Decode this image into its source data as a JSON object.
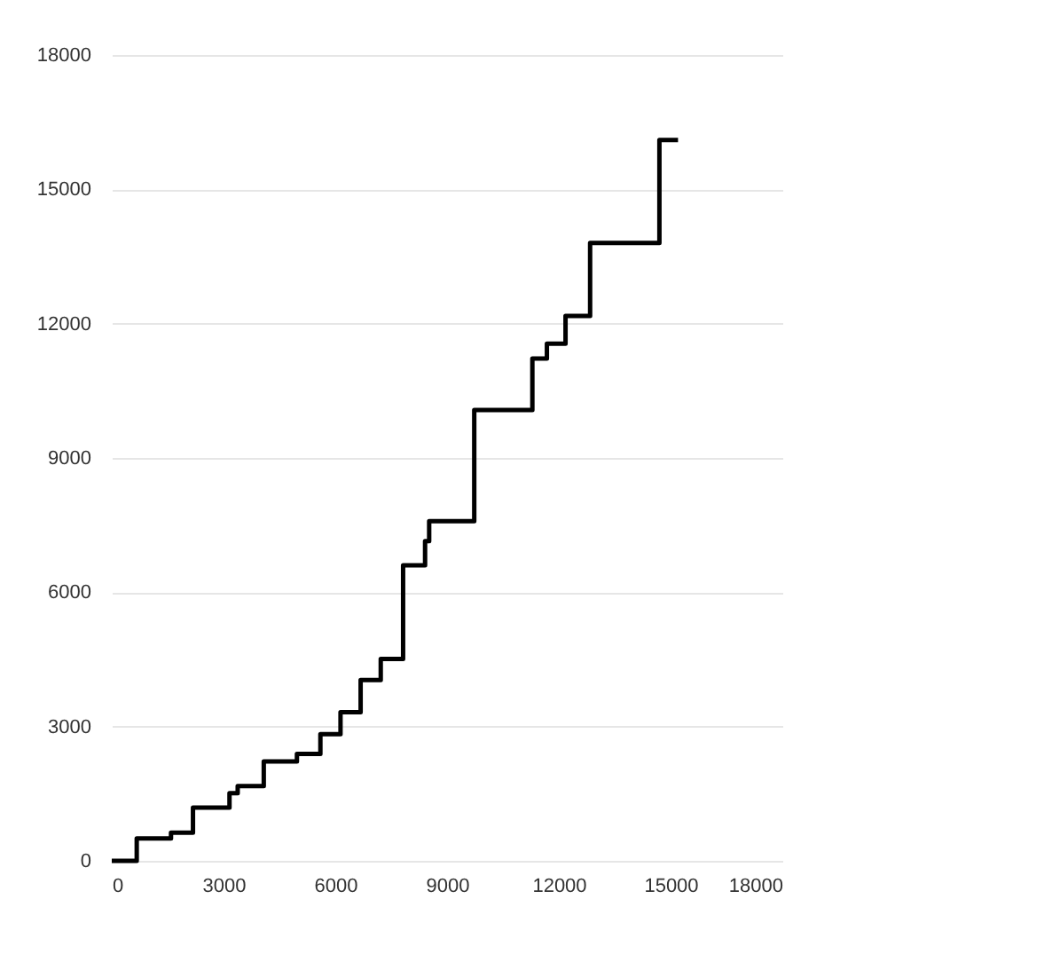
{
  "chart_data": {
    "type": "step",
    "x": [
      0,
      670,
      1590,
      2180,
      3160,
      3380,
      4080,
      4970,
      5600,
      6140,
      6680,
      7220,
      7820,
      8410,
      8520,
      9730,
      11290,
      11680,
      12180,
      12840,
      14700,
      15200
    ],
    "series": [
      {
        "color": "#000000",
        "values": [
          0,
          500,
          630,
          1190,
          1510,
          1670,
          2220,
          2390,
          2830,
          3320,
          4040,
          4510,
          6600,
          7140,
          7590,
          10070,
          11220,
          11550,
          12170,
          13800,
          16100,
          16100
        ]
      }
    ],
    "xlim": [
      0,
      18000
    ],
    "xticks": [
      0,
      3000,
      6000,
      9000,
      12000,
      15000,
      18000
    ],
    "ylim": [
      0,
      18000
    ],
    "yticks": [
      0,
      3000,
      6000,
      9000,
      12000,
      15000,
      18000
    ],
    "grid": "y",
    "marker": "none",
    "line_style": "solid"
  }
}
